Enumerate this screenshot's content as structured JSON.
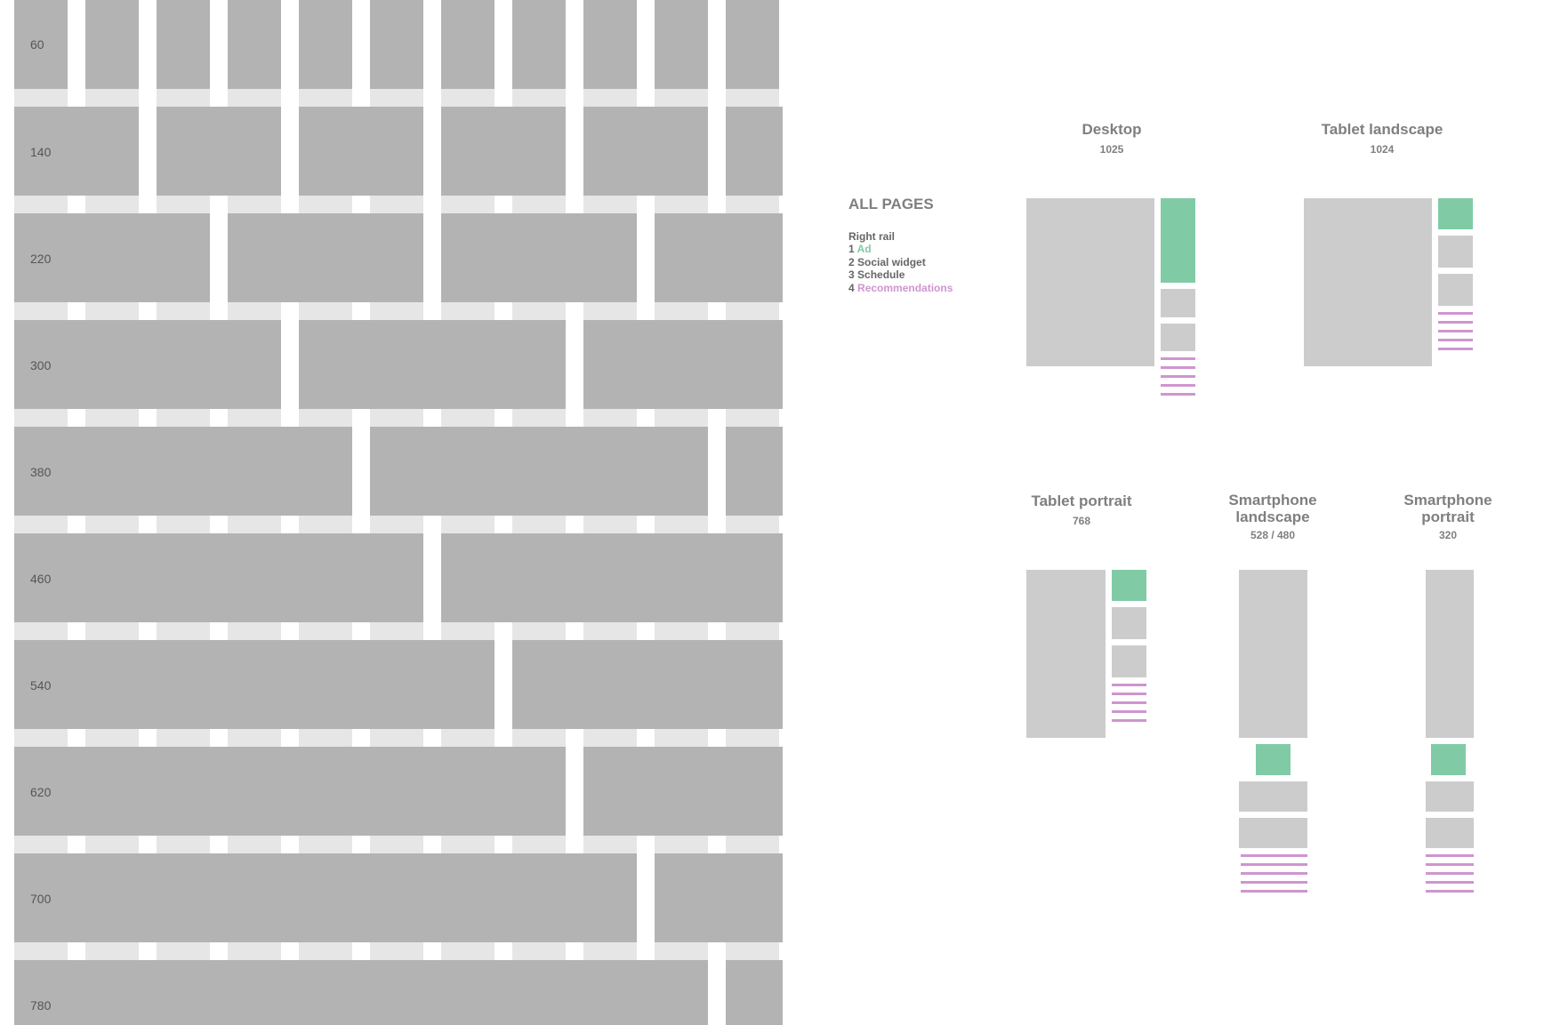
{
  "grid": {
    "row_labels": [
      "60",
      "140",
      "220",
      "300",
      "380",
      "460",
      "540",
      "620",
      "700",
      "780"
    ]
  },
  "legend": {
    "heading": "ALL PAGES",
    "rail_title": "Right rail",
    "items": [
      {
        "num": "1",
        "label": "Ad"
      },
      {
        "num": "2",
        "label": "Social widget"
      },
      {
        "num": "3",
        "label": "Schedule"
      },
      {
        "num": "4",
        "label": "Recommendations"
      }
    ]
  },
  "breakpoints": {
    "desktop": {
      "title": "Desktop",
      "width": "1025"
    },
    "tablet_landscape": {
      "title": "Tablet landscape",
      "width": "1024"
    },
    "tablet_portrait": {
      "title": "Tablet portrait",
      "width": "768"
    },
    "smartphone_landscape": {
      "title_line1": "Smartphone",
      "title_line2": "landscape",
      "width": "528 / 480"
    },
    "smartphone_portrait": {
      "title_line1": "Smartphone",
      "title_line2": "portrait",
      "width": "320"
    }
  },
  "colors": {
    "ad": "#80cba5",
    "recommendations": "#cf95cf",
    "grid_block": "#b3b3b3",
    "grid_column": "#e6e6e6",
    "placeholder": "#cccccc"
  }
}
